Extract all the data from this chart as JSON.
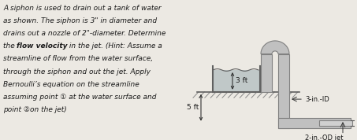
{
  "bg_color": "#ece9e3",
  "text_color": "#1a1a1a",
  "text_lines": [
    "A siphon is used to drain out a tank of water",
    "as shown. The siphon is 3\" in diameter and",
    "drains out a nozzle of 2\"-diameter. Determine",
    "the flow velocity in the jet. (Hint: Assume a",
    "streamline of flow from the water surface,",
    "through the siphon and out the jet. Apply",
    "Bernoulli’s equation on the streamline",
    "assuming point ① at the water surface and",
    "point ②on the jet)"
  ],
  "font_size": 6.5,
  "bold_italic_line": 3,
  "bold_start": "the ",
  "bold_word": "flow velocity",
  "bold_end": " in the jet. (Hint: Assume a",
  "dim_3ft": "3 ft",
  "dim_5ft": "5 ft",
  "label_3in_id": "3-in.-ID",
  "label_2in_od": "2-in.-OD jet",
  "tank_fill": "#c0c8c8",
  "water_fill": "#b8bfc0",
  "pipe_fill": "#c0c0c0",
  "pipe_edge": "#808080",
  "ground_fill": "#d0ccc0",
  "hatch_color": "#888888",
  "wall_color": "#606060",
  "arrow_color": "#333333"
}
